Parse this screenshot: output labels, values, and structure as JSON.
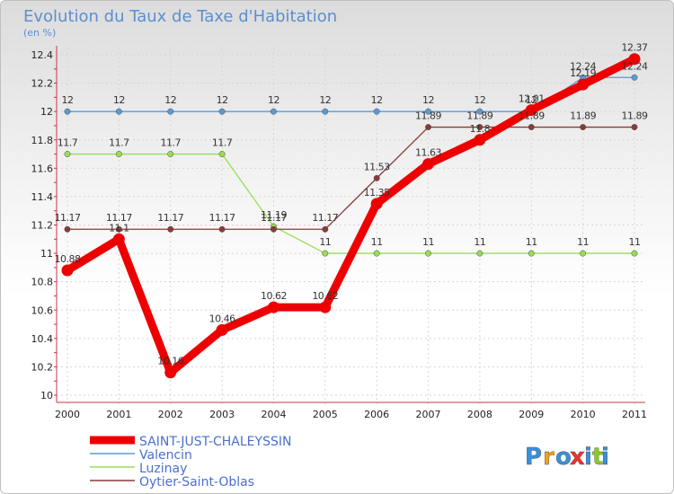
{
  "chart_data": {
    "type": "line",
    "title": "Evolution du Taux de Taxe d'Habitation",
    "subtitle": "(en %)",
    "xlabel": "",
    "ylabel": "",
    "x": [
      "2000",
      "2001",
      "2002",
      "2003",
      "2004",
      "2005",
      "2006",
      "2007",
      "2008",
      "2009",
      "2010",
      "2011"
    ],
    "ylim": [
      10,
      12.4
    ],
    "yticks": [
      "10",
      "10.2",
      "10.4",
      "10.6",
      "10.8",
      "11",
      "11.2",
      "11.4",
      "11.6",
      "11.8",
      "12",
      "12.2",
      "12.4"
    ],
    "grid": true,
    "legend_position": "bottom-left",
    "series": [
      {
        "name": "Valencin",
        "color": "#5b9bd5",
        "values": [
          12,
          12,
          12,
          12,
          12,
          12,
          12,
          12,
          12,
          12,
          12.24,
          12.24
        ],
        "labels": [
          "12",
          "12",
          "12",
          "12",
          "12",
          "12",
          "12",
          "12",
          "12",
          "12",
          "12.24",
          "12.24"
        ]
      },
      {
        "name": "Luzinay",
        "color": "#99dd55",
        "values": [
          11.7,
          11.7,
          11.7,
          11.7,
          11.19,
          11,
          11,
          11,
          11,
          11,
          11,
          11
        ],
        "labels": [
          "11.7",
          "11.7",
          "11.7",
          "11.7",
          "11.19",
          "11",
          "11",
          "11",
          "11",
          "11",
          "11",
          "11"
        ]
      },
      {
        "name": "Oytier-Saint-Oblas",
        "color": "#8b3a3a",
        "values": [
          11.17,
          11.17,
          11.17,
          11.17,
          11.17,
          11.17,
          11.53,
          11.89,
          11.89,
          11.89,
          11.89,
          11.89
        ],
        "labels": [
          "11.17",
          "11.17",
          "11.17",
          "11.17",
          "11.17",
          "11.17",
          "11.53",
          "11.89",
          "11.89",
          "11.89",
          "11.89",
          "11.89"
        ]
      },
      {
        "name": "SAINT-JUST-CHALEYSSIN",
        "color": "#ee0000",
        "values": [
          10.88,
          11.1,
          10.16,
          10.46,
          10.62,
          10.62,
          11.35,
          11.63,
          11.8,
          12.01,
          12.19,
          12.37
        ],
        "labels": [
          "10.88",
          "11.1",
          "10.16",
          "10.46",
          "10.62",
          "10.62",
          "11.35",
          "11.63",
          "11.8",
          "12.01",
          "12.19",
          "12.37"
        ]
      }
    ],
    "legend_order": [
      "SAINT-JUST-CHALEYSSIN",
      "Valencin",
      "Luzinay",
      "Oytier-Saint-Oblas"
    ]
  },
  "branding": {
    "letters": [
      "P",
      "r",
      "o",
      "x",
      "i",
      "t",
      "i"
    ],
    "colors": [
      "#3a8fd8",
      "#f0a020",
      "#3a8fd8",
      "#ee3030",
      "#3a8fd8",
      "#88cc22",
      "#3a8fd8"
    ]
  }
}
